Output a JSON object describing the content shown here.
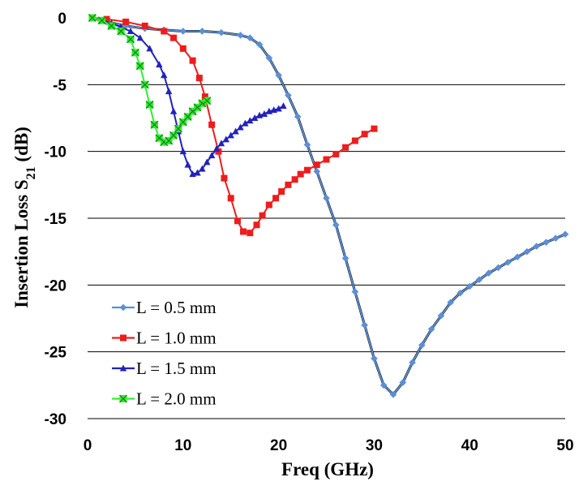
{
  "chart_data": {
    "type": "line",
    "title": "",
    "xlabel": "Freq (GHz)",
    "ylabel": "Insertion Loss  S",
    "ylabel_sub": "21",
    "ylabel_unit": " (dB)",
    "xlim": [
      0,
      50
    ],
    "ylim": [
      -30,
      0
    ],
    "xticks": [
      "0",
      "10",
      "20",
      "30",
      "40",
      "50"
    ],
    "yticks": [
      "0",
      "-5",
      "-10",
      "-15",
      "-20",
      "-25",
      "-30"
    ],
    "grid": "horizontal",
    "legend_position": "bottom-left",
    "series": [
      {
        "name": "L = 0.5 mm",
        "color": "#5b8fd6",
        "marker": "diamond",
        "x": [
          0.5,
          2,
          4,
          6,
          8,
          10,
          12,
          14,
          16,
          17,
          18,
          19,
          20,
          21,
          22,
          23,
          24,
          25,
          26,
          27,
          28,
          29,
          30,
          31,
          32,
          33,
          34,
          35,
          36,
          37,
          38,
          39,
          40,
          41,
          42,
          43,
          44,
          45,
          46,
          47,
          48,
          49,
          50
        ],
        "y": [
          0,
          -0.3,
          -0.6,
          -0.8,
          -0.9,
          -1.0,
          -1.0,
          -1.1,
          -1.3,
          -1.5,
          -2.0,
          -3.0,
          -4.3,
          -5.8,
          -7.4,
          -9.5,
          -11.5,
          -13.5,
          -15.5,
          -18.0,
          -20.5,
          -23.0,
          -25.5,
          -27.5,
          -28.2,
          -27.3,
          -25.8,
          -24.5,
          -23.3,
          -22.3,
          -21.3,
          -20.6,
          -20.1,
          -19.6,
          -19.1,
          -18.7,
          -18.3,
          -17.9,
          -17.5,
          -17.1,
          -16.8,
          -16.5,
          -16.2
        ]
      },
      {
        "name": "L = 1.0 mm",
        "color": "#ee1c1c",
        "marker": "square",
        "x": [
          0.5,
          2,
          4,
          6,
          8,
          9,
          10,
          11,
          11.7,
          12.3,
          13,
          13.7,
          14.3,
          15,
          15.7,
          16.3,
          17,
          17.7,
          18.3,
          19,
          19.7,
          20.3,
          21,
          21.7,
          22.3,
          23,
          24,
          25,
          26,
          27,
          28,
          29,
          30
        ],
        "y": [
          0,
          -0.1,
          -0.3,
          -0.6,
          -1.0,
          -1.5,
          -2.3,
          -3.2,
          -4.5,
          -5.9,
          -8.0,
          -10.0,
          -12.0,
          -13.5,
          -15.2,
          -16.0,
          -16.1,
          -15.5,
          -14.8,
          -14.0,
          -13.5,
          -13.0,
          -12.5,
          -12.1,
          -11.7,
          -11.4,
          -11.0,
          -10.6,
          -10.2,
          -9.7,
          -9.2,
          -8.7,
          -8.3
        ]
      },
      {
        "name": "L = 1.5 mm",
        "color": "#2222bb",
        "marker": "triangle",
        "x": [
          0.5,
          1.5,
          2.5,
          3.5,
          4.5,
          5.5,
          6.5,
          7.5,
          8,
          8.5,
          9,
          9.5,
          10,
          10.5,
          11,
          11.5,
          12,
          12.5,
          13,
          13.5,
          14,
          14.5,
          15,
          15.5,
          16,
          16.5,
          17,
          17.5,
          18,
          18.5,
          19,
          19.5,
          20,
          20.5
        ],
        "y": [
          0,
          -0.2,
          -0.4,
          -0.7,
          -1.0,
          -1.5,
          -2.3,
          -3.5,
          -4.3,
          -5.5,
          -7.0,
          -8.5,
          -10.0,
          -11.0,
          -11.7,
          -11.6,
          -11.3,
          -10.8,
          -10.3,
          -9.8,
          -9.4,
          -9.1,
          -8.8,
          -8.5,
          -8.2,
          -7.9,
          -7.7,
          -7.5,
          -7.3,
          -7.2,
          -7.0,
          -6.9,
          -6.8,
          -6.6
        ]
      },
      {
        "name": "L = 2.0 mm",
        "color": "#33ee33",
        "marker": "x",
        "x": [
          0.5,
          1.5,
          2.5,
          3.5,
          4.5,
          5.0,
          5.5,
          6.0,
          6.5,
          7.0,
          7.5,
          8.0,
          8.5,
          9.0,
          9.5,
          10.0,
          10.5,
          11.0,
          11.5,
          12.0,
          12.5
        ],
        "y": [
          0,
          -0.2,
          -0.6,
          -1.0,
          -1.6,
          -2.6,
          -3.6,
          -5.0,
          -6.5,
          -8.0,
          -9.0,
          -9.3,
          -9.2,
          -8.8,
          -8.3,
          -7.8,
          -7.4,
          -7.0,
          -6.7,
          -6.4,
          -6.2
        ]
      }
    ]
  }
}
